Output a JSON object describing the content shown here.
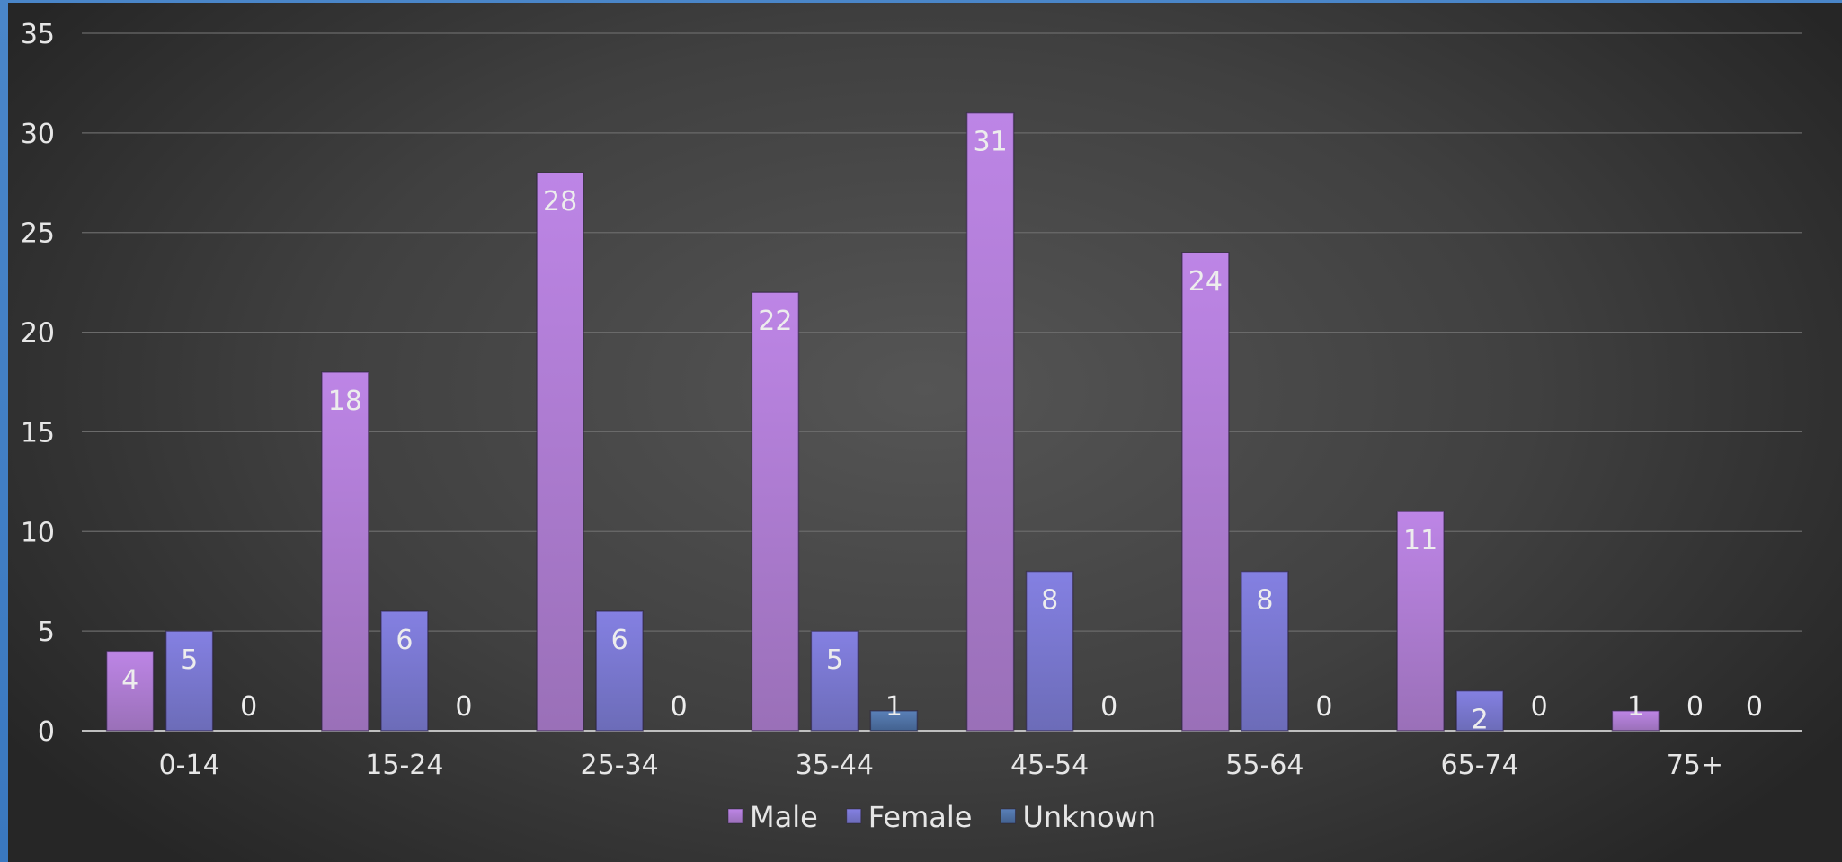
{
  "chart_data": {
    "type": "bar",
    "categories": [
      "0-14",
      "15-24",
      "25-34",
      "35-44",
      "45-54",
      "55-64",
      "65-74",
      "75+"
    ],
    "series": [
      {
        "name": "Male",
        "values": [
          4,
          18,
          28,
          22,
          31,
          24,
          11,
          1
        ],
        "color": "#b57fe0"
      },
      {
        "name": "Female",
        "values": [
          5,
          6,
          6,
          5,
          8,
          8,
          2,
          0
        ],
        "color": "#7c79d8"
      },
      {
        "name": "Unknown",
        "values": [
          0,
          0,
          0,
          1,
          0,
          0,
          0,
          0
        ],
        "color": "#4f72a6"
      }
    ],
    "ylim": [
      0,
      35
    ],
    "yticks": [
      0,
      5,
      10,
      15,
      20,
      25,
      30,
      35
    ],
    "grid": true,
    "legend_position": "bottom",
    "data_labels": true,
    "title": "",
    "xlabel": "",
    "ylabel": ""
  }
}
